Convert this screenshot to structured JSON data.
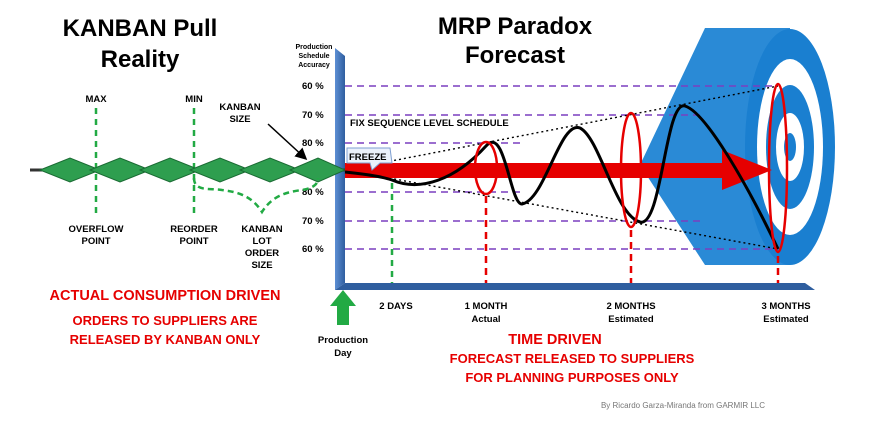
{
  "left_title": {
    "line1": "KANBAN Pull",
    "line2": "Reality"
  },
  "right_title": {
    "line1": "MRP Paradox",
    "line2": "Forecast"
  },
  "axis_header": {
    "line1": "Production",
    "line2": "Schedule",
    "line3": "Accuracy"
  },
  "accuracy_upper": [
    "60 %",
    "70 %",
    "80 %"
  ],
  "accuracy_lower": [
    "80 %",
    "70 %",
    "60 %"
  ],
  "kanban_labels": {
    "max": "MAX",
    "min": "MIN",
    "kanban_size": {
      "line1": "KANBAN",
      "line2": "SIZE"
    },
    "overflow": {
      "line1": "OVERFLOW",
      "line2": "POINT"
    },
    "reorder": {
      "line1": "REORDER",
      "line2": "POINT"
    },
    "lot": {
      "line1": "KANBAN",
      "line2": "LOT",
      "line3": "ORDER",
      "line4": "SIZE"
    }
  },
  "fix_sequence": "FIX SEQUENCE LEVEL SCHEDULE",
  "freeze": "FREEZE",
  "timeline": {
    "days2": "2 DAYS",
    "month1": {
      "line1": "1 MONTH",
      "line2": "Actual"
    },
    "month2": {
      "line1": "2 MONTHS",
      "line2": "Estimated"
    },
    "month3": {
      "line1": "3 MONTHS",
      "line2": "Estimated"
    },
    "production_day": {
      "line1": "Production",
      "line2": "Day"
    }
  },
  "left_caption": {
    "heading": "ACTUAL CONSUMPTION DRIVEN",
    "line1": "ORDERS TO SUPPLIERS ARE",
    "line2": "RELEASED BY KANBAN ONLY"
  },
  "right_caption": {
    "heading": "TIME DRIVEN",
    "line1": "FORECAST RELEASED TO SUPPLIERS",
    "line2": "FOR PLANNING PURPOSES ONLY"
  },
  "credit": "By Ricardo Garza-Miranda from GARMIR LLC",
  "colors": {
    "red": "#e60000",
    "green": "#22aa44",
    "diamond": "#2e9e4f",
    "purple": "#7a3fbf",
    "axis_blue": "#3d6fb5",
    "target_blue": "#1a7fd0"
  }
}
